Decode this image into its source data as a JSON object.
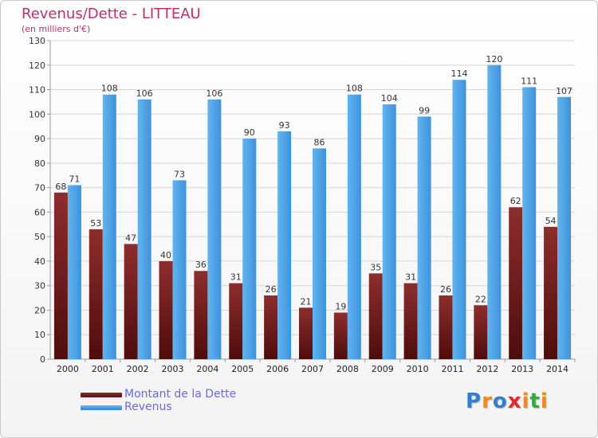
{
  "header": {
    "title": "Revenus/Dette - LITTEAU",
    "subtitle": "(en milliers d'€)"
  },
  "chart_data": {
    "type": "bar",
    "title": "Revenus/Dette - LITTEAU",
    "subtitle": "(en milliers d'€)",
    "xlabel": "",
    "ylabel": "",
    "ylim": [
      0,
      130
    ],
    "yticks": [
      0,
      10,
      20,
      30,
      40,
      50,
      60,
      70,
      80,
      90,
      100,
      110,
      120,
      130
    ],
    "grid": true,
    "legend_position": "bottom-left",
    "categories": [
      "2000",
      "2001",
      "2002",
      "2003",
      "2004",
      "2005",
      "2006",
      "2007",
      "2008",
      "2009",
      "2010",
      "2011",
      "2012",
      "2013",
      "2014"
    ],
    "series": [
      {
        "name": "Montant de la Dette",
        "color": "#7a1f1f",
        "values": [
          68,
          53,
          47,
          40,
          36,
          31,
          26,
          21,
          19,
          35,
          31,
          26,
          22,
          62,
          54
        ]
      },
      {
        "name": "Revenus",
        "color": "#4aa3e6",
        "values": [
          71,
          108,
          106,
          73,
          106,
          90,
          93,
          86,
          108,
          104,
          99,
          114,
          120,
          111,
          107
        ]
      }
    ]
  },
  "legend": {
    "debt_label": "Montant de la Dette",
    "revenue_label": "Revenus"
  },
  "logo": {
    "text": "Proxiti",
    "letters": [
      "P",
      "r",
      "o",
      "x",
      "i",
      "t",
      "i"
    ],
    "colors": [
      "#2f7fd0",
      "#f08a1c",
      "#2f7fd0",
      "#e02a2a",
      "#f08a1c",
      "#2fae3a",
      "#f08a1c"
    ]
  }
}
